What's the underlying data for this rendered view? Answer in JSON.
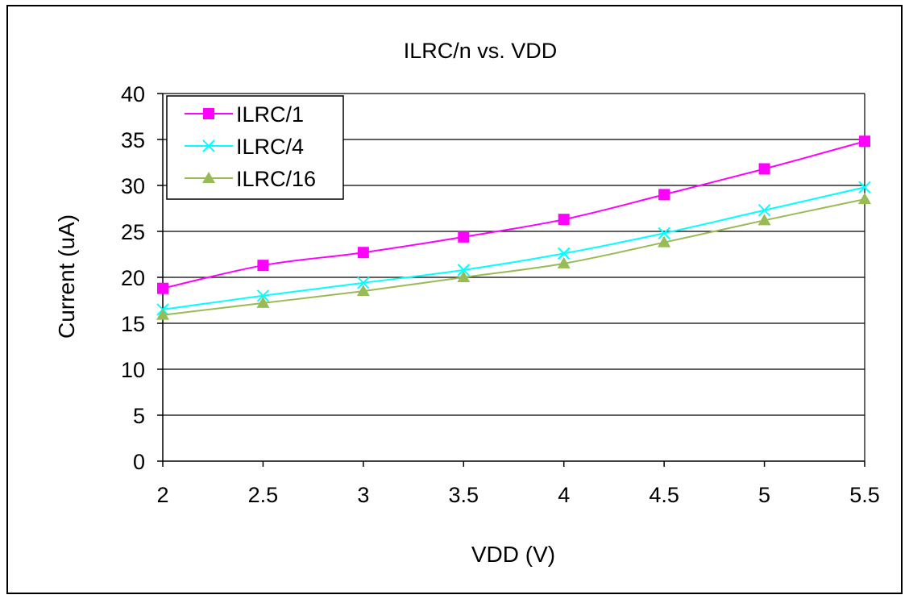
{
  "chart_data": {
    "type": "line",
    "title": "ILRC/n vs. VDD",
    "xlabel": "VDD (V)",
    "ylabel": "Current (uA)",
    "x": [
      2,
      2.5,
      3,
      3.5,
      4,
      4.5,
      5,
      5.5
    ],
    "x_tick_labels": [
      "2",
      "2.5",
      "3",
      "3.5",
      "4",
      "4.5",
      "5",
      "5.5"
    ],
    "y_tick_labels": [
      "0",
      "5",
      "10",
      "15",
      "20",
      "25",
      "30",
      "35",
      "40"
    ],
    "xlim": [
      2,
      5.5
    ],
    "ylim": [
      0,
      40
    ],
    "grid": "horizontal",
    "legend_position": "top-left",
    "series": [
      {
        "name": "ILRC/1",
        "color": "#ff00ff",
        "marker": "square",
        "values": [
          18.8,
          21.3,
          22.7,
          24.4,
          26.3,
          29.0,
          31.8,
          34.8
        ]
      },
      {
        "name": "ILRC/4",
        "color": "#00ffff",
        "marker": "x",
        "values": [
          16.5,
          18.0,
          19.4,
          20.8,
          22.6,
          24.8,
          27.3,
          29.8
        ]
      },
      {
        "name": "ILRC/16",
        "color": "#99bb55",
        "marker": "triangle",
        "values": [
          15.9,
          17.2,
          18.5,
          20.0,
          21.5,
          23.8,
          26.2,
          28.5
        ]
      }
    ]
  }
}
